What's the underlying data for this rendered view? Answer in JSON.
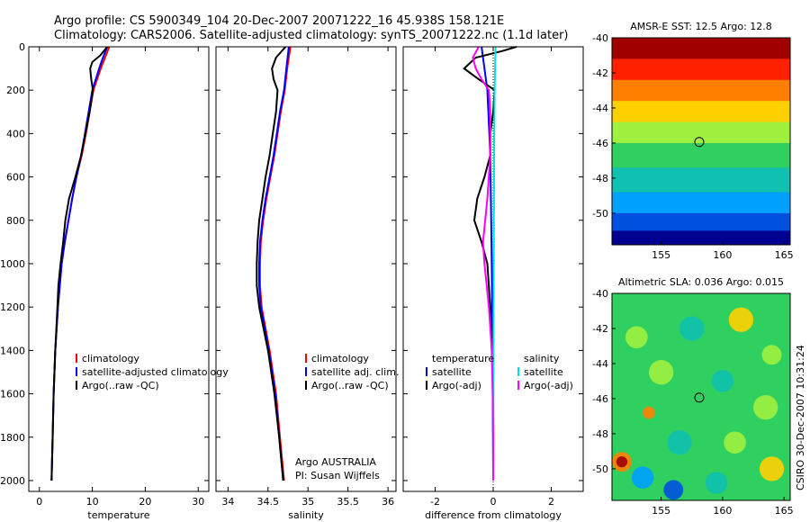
{
  "header": {
    "line1": "Argo profile: CS 5900349_104 20-Dec-2007 20071222_16 45.938S 158.121E",
    "line2": "Climatology: CARS2006. Satellite-adjusted climatology: synTS_20071222.nc (1.1d later)"
  },
  "chart_data": [
    {
      "type": "line",
      "xlabel": "temperature",
      "ylabel": "",
      "xlim": [
        -2,
        32
      ],
      "ylim": [
        2050,
        0
      ],
      "xticks": [
        "0",
        "10",
        "20",
        "30"
      ],
      "yticks": [
        "0",
        "200",
        "400",
        "600",
        "800",
        "1000",
        "1200",
        "1400",
        "1600",
        "1800",
        "2000"
      ],
      "legend": [
        "climatology",
        "satellite-adjusted climatology",
        "Argo(..raw -QC)"
      ],
      "legend_position": "lower-right",
      "series": [
        {
          "name": "climatology",
          "color": "#ff0000",
          "depth": [
            0,
            50,
            100,
            200,
            300,
            400,
            500,
            600,
            700,
            800,
            900,
            1000,
            1200,
            1400,
            1600,
            1800,
            1900,
            2000
          ],
          "values": [
            13.2,
            12.4,
            11.6,
            10.2,
            9.5,
            8.8,
            8.0,
            7.0,
            6.2,
            5.5,
            4.8,
            4.2,
            3.5,
            3.0,
            2.7,
            2.5,
            2.4,
            2.3
          ]
        },
        {
          "name": "satellite-adjusted climatology",
          "color": "#0000ff",
          "depth": [
            0,
            50,
            100,
            200,
            300,
            400,
            500,
            600,
            700,
            800,
            900,
            1000,
            1200,
            1400,
            1600,
            1800,
            1900,
            2000
          ],
          "values": [
            12.8,
            12.0,
            11.3,
            10.0,
            9.3,
            8.6,
            7.9,
            7.0,
            6.2,
            5.5,
            4.8,
            4.2,
            3.5,
            3.0,
            2.7,
            2.5,
            2.4,
            2.3
          ]
        },
        {
          "name": "Argo(..raw -QC)",
          "color": "#000000",
          "depth": [
            0,
            40,
            70,
            100,
            150,
            200,
            300,
            400,
            500,
            600,
            700,
            800,
            900,
            1000,
            1100,
            1200,
            1400,
            1600,
            1800,
            2000
          ],
          "values": [
            12.8,
            11.5,
            10.0,
            9.6,
            9.8,
            10.1,
            9.5,
            8.7,
            7.9,
            6.8,
            5.6,
            4.9,
            4.5,
            4.0,
            3.6,
            3.4,
            3.0,
            2.7,
            2.5,
            2.3
          ]
        }
      ]
    },
    {
      "type": "line",
      "xlabel": "salinity",
      "ylabel": "",
      "xlim": [
        33.85,
        36.1
      ],
      "ylim": [
        2050,
        0
      ],
      "xticks": [
        "34",
        "34.5",
        "35",
        "35.5",
        "36"
      ],
      "legend": [
        "climatology",
        "satellite adj. clim.",
        "Argo(..raw -QC)"
      ],
      "legend_position": "lower-right",
      "annotation": [
        "Argo AUSTRALIA",
        "PI: Susan Wijffels"
      ],
      "series": [
        {
          "name": "climatology",
          "color": "#ff0000",
          "depth": [
            0,
            100,
            200,
            300,
            400,
            500,
            600,
            700,
            800,
            900,
            1000,
            1100,
            1200,
            1400,
            1600,
            1800,
            2000
          ],
          "values": [
            34.78,
            34.74,
            34.71,
            34.66,
            34.62,
            34.58,
            34.53,
            34.48,
            34.44,
            34.41,
            34.4,
            34.4,
            34.42,
            34.52,
            34.6,
            34.65,
            34.7
          ]
        },
        {
          "name": "satellite adj. clim.",
          "color": "#0000ff",
          "depth": [
            0,
            100,
            200,
            300,
            400,
            500,
            600,
            700,
            800,
            900,
            1000,
            1100,
            1200,
            1400,
            1600,
            1800,
            2000
          ],
          "values": [
            34.76,
            34.73,
            34.7,
            34.65,
            34.61,
            34.57,
            34.52,
            34.47,
            34.43,
            34.4,
            34.39,
            34.39,
            34.41,
            34.51,
            34.59,
            34.64,
            34.69
          ]
        },
        {
          "name": "Argo(..raw -QC)",
          "color": "#000000",
          "depth": [
            0,
            50,
            100,
            150,
            200,
            300,
            400,
            500,
            600,
            700,
            800,
            900,
            1000,
            1100,
            1200,
            1400,
            1600,
            1800,
            2000
          ],
          "values": [
            34.72,
            34.6,
            34.55,
            34.57,
            34.62,
            34.6,
            34.56,
            34.52,
            34.47,
            34.43,
            34.39,
            34.37,
            34.36,
            34.36,
            34.39,
            34.5,
            34.58,
            34.64,
            34.69
          ]
        }
      ]
    },
    {
      "type": "line",
      "xlabel": "difference from climatology",
      "ylabel": "",
      "xlim": [
        -3.1,
        3.1
      ],
      "ylim": [
        2050,
        0
      ],
      "xticks": [
        "-2",
        "0",
        "2"
      ],
      "legend_left_header": "temperature",
      "legend_right_header": "salinity",
      "legend_left": [
        "satellite",
        "Argo(-adj)"
      ],
      "legend_right": [
        "satellite",
        "Argo(-adj)"
      ],
      "series": [
        {
          "name": "satellite",
          "quantity": "temperature",
          "color": "#0000ff",
          "depth": [
            0,
            100,
            200,
            500,
            1000,
            1500,
            2000
          ],
          "values": [
            -0.4,
            -0.3,
            -0.2,
            -0.1,
            -0.05,
            -0.02,
            0.0
          ]
        },
        {
          "name": "Argo(-adj)",
          "quantity": "temperature",
          "color": "#000000",
          "depth": [
            0,
            20,
            50,
            100,
            150,
            200,
            300,
            400,
            500,
            600,
            700,
            800,
            900,
            1000,
            1200,
            1400,
            1600,
            1800,
            2000
          ],
          "values": [
            0.8,
            0.3,
            -0.6,
            -1.0,
            -0.5,
            0.05,
            0.0,
            -0.1,
            -0.1,
            -0.3,
            -0.55,
            -0.65,
            -0.4,
            -0.2,
            -0.1,
            -0.05,
            0.0,
            0.0,
            0.0
          ]
        },
        {
          "name": "satellite",
          "quantity": "salinity",
          "color": "#00e0e0",
          "depth": [
            0,
            200,
            500,
            1000,
            1500,
            2000
          ],
          "values": [
            0.08,
            0.05,
            0.03,
            0.02,
            0.01,
            0.0
          ]
        },
        {
          "name": "Argo(-adj)",
          "quantity": "salinity",
          "color": "#ff00ff",
          "depth": [
            0,
            50,
            100,
            150,
            200,
            300,
            500,
            700,
            900,
            1000,
            1200,
            1400,
            1600,
            1800,
            2000
          ],
          "values": [
            -0.5,
            -0.7,
            -0.6,
            -0.4,
            -0.15,
            -0.1,
            -0.1,
            -0.2,
            -0.35,
            -0.3,
            -0.15,
            -0.05,
            -0.02,
            0.0,
            0.0
          ]
        }
      ]
    },
    {
      "type": "heatmap",
      "title": "AMSR-E SST: 12.5 Argo: 12.8",
      "xlim": [
        151,
        165.5
      ],
      "ylim": [
        -51.8,
        -40
      ],
      "xticks": [
        "155",
        "160",
        "165"
      ],
      "yticks": [
        "-40",
        "-42",
        "-44",
        "-46",
        "-48",
        "-50"
      ],
      "marker": {
        "lon": 158.1,
        "lat": -45.94
      },
      "bands": [
        {
          "lat_from": -40,
          "lat_to": -41.2,
          "color": "#a00000"
        },
        {
          "lat_from": -41.2,
          "lat_to": -42.4,
          "color": "#ff2000"
        },
        {
          "lat_from": -42.4,
          "lat_to": -43.6,
          "color": "#ff8000"
        },
        {
          "lat_from": -43.6,
          "lat_to": -44.8,
          "color": "#ffd000"
        },
        {
          "lat_from": -44.8,
          "lat_to": -46.0,
          "color": "#a0f040"
        },
        {
          "lat_from": -46.0,
          "lat_to": -47.4,
          "color": "#30d060"
        },
        {
          "lat_from": -47.4,
          "lat_to": -48.8,
          "color": "#10c0b0"
        },
        {
          "lat_from": -48.8,
          "lat_to": -50.0,
          "color": "#00a0ff"
        },
        {
          "lat_from": -50.0,
          "lat_to": -51.0,
          "color": "#0050e0"
        },
        {
          "lat_from": -51.0,
          "lat_to": -51.8,
          "color": "#000090"
        }
      ]
    },
    {
      "type": "heatmap",
      "title": "Altimetric SLA: 0.036 Argo: 0.015",
      "xlim": [
        151,
        165.5
      ],
      "ylim": [
        -51.8,
        -40
      ],
      "xticks": [
        "155",
        "160",
        "165"
      ],
      "yticks": [
        "-40",
        "-42",
        "-44",
        "-46",
        "-48",
        "-50"
      ],
      "marker": {
        "lon": 158.1,
        "lat": -45.94
      },
      "background_color": "#30d060",
      "patches": [
        {
          "lon": 153.0,
          "lat": -42.5,
          "r": 0.9,
          "color": "#a0f040"
        },
        {
          "lon": 157.5,
          "lat": -42.0,
          "r": 1.0,
          "color": "#10c0b0"
        },
        {
          "lon": 161.5,
          "lat": -41.5,
          "r": 1.0,
          "color": "#ffd000"
        },
        {
          "lon": 164.0,
          "lat": -43.5,
          "r": 0.8,
          "color": "#a0f040"
        },
        {
          "lon": 155.0,
          "lat": -44.5,
          "r": 1.0,
          "color": "#a0f040"
        },
        {
          "lon": 160.0,
          "lat": -45.0,
          "r": 0.9,
          "color": "#10c0b0"
        },
        {
          "lon": 163.5,
          "lat": -46.5,
          "r": 1.0,
          "color": "#a0f040"
        },
        {
          "lon": 154.0,
          "lat": -46.8,
          "r": 0.5,
          "color": "#ff8000"
        },
        {
          "lon": 156.5,
          "lat": -48.5,
          "r": 1.0,
          "color": "#10c0b0"
        },
        {
          "lon": 161.0,
          "lat": -48.5,
          "r": 0.9,
          "color": "#a0f040"
        },
        {
          "lon": 151.8,
          "lat": -49.6,
          "r": 0.8,
          "color": "#ff8000"
        },
        {
          "lon": 151.8,
          "lat": -49.6,
          "r": 0.45,
          "color": "#a00000"
        },
        {
          "lon": 153.5,
          "lat": -50.5,
          "r": 0.9,
          "color": "#00a0ff"
        },
        {
          "lon": 156.0,
          "lat": -51.2,
          "r": 0.8,
          "color": "#0050e0"
        },
        {
          "lon": 159.5,
          "lat": -50.8,
          "r": 0.9,
          "color": "#10c0b0"
        },
        {
          "lon": 164.0,
          "lat": -50.0,
          "r": 1.0,
          "color": "#ffd000"
        }
      ]
    }
  ],
  "credit": "CSIRO 30-Dec-2007 10:31:24"
}
